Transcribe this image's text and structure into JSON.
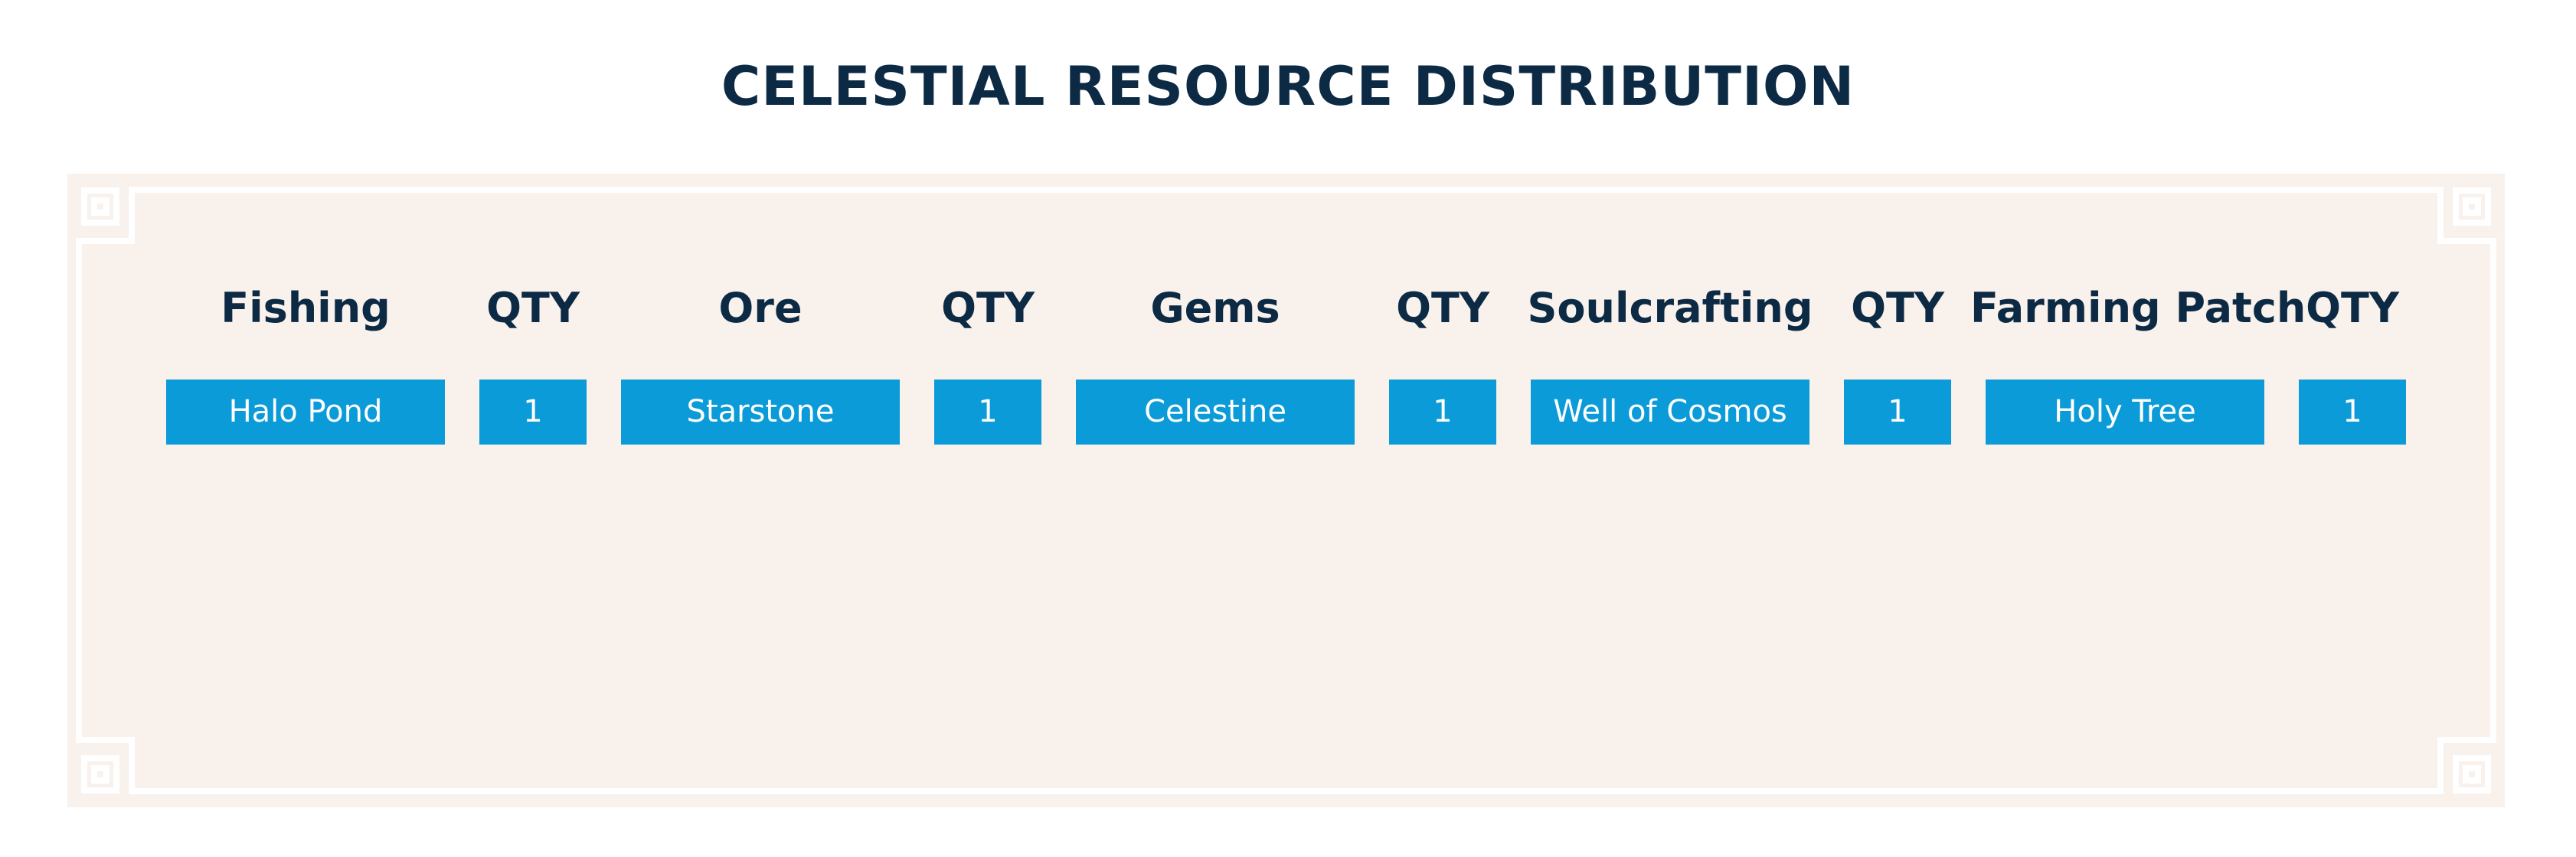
{
  "header": {
    "title": "CELESTIAL RESOURCE DISTRIBUTION"
  },
  "table": {
    "columns": [
      "Fishing",
      "QTY",
      "Ore",
      "QTY",
      "Gems",
      "QTY",
      "Soulcrafting",
      "QTY",
      "Farming Patch",
      "QTY"
    ],
    "rows": [
      [
        "Halo Pond",
        1,
        "Starstone",
        1,
        "Celestine",
        1,
        "Well of Cosmos",
        1,
        "Holy Tree",
        1
      ]
    ]
  }
}
